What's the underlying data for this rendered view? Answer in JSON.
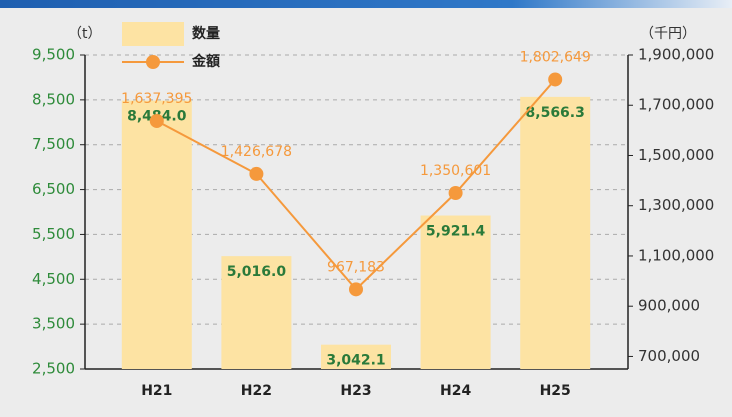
{
  "chart_data": {
    "type": "bar_line",
    "y_unit": "（t）",
    "y2_unit": "（千円）",
    "categories": [
      "H21",
      "H22",
      "H23",
      "H24",
      "H25"
    ],
    "series": [
      {
        "name": "数量",
        "type": "bar",
        "color": "#fde3a3",
        "label_color": "#2a7a3a",
        "values": [
          8484.0,
          5016.0,
          3042.1,
          5921.4,
          8566.3
        ],
        "value_labels": [
          "8,484.0",
          "5,016.0",
          "3,042.1",
          "5,921.4",
          "8,566.3"
        ]
      },
      {
        "name": "金額",
        "type": "line",
        "axis": "y2",
        "color": "#f5993c",
        "values": [
          1637395,
          1426678,
          967183,
          1350601,
          1802649
        ],
        "value_labels": [
          "1,637,395",
          "1,426,678",
          "967,183",
          "1,350,601",
          "1,802,649"
        ]
      }
    ],
    "ylim": [
      2500,
      9500
    ],
    "yticks": [
      {
        "value": 2500,
        "label": "2,500"
      },
      {
        "value": 3500,
        "label": "3,500"
      },
      {
        "value": 4500,
        "label": "4,500"
      },
      {
        "value": 5500,
        "label": "5,500"
      },
      {
        "value": 6500,
        "label": "6,500"
      },
      {
        "value": 7500,
        "label": "7,500"
      },
      {
        "value": 8500,
        "label": "8,500"
      },
      {
        "value": 9500,
        "label": "9,500"
      }
    ],
    "y2lim": [
      650000,
      1900000
    ],
    "y2ticks": [
      {
        "value": 700000,
        "label": "700,000"
      },
      {
        "value": 900000,
        "label": "900,000"
      },
      {
        "value": 1100000,
        "label": "1,100,000"
      },
      {
        "value": 1300000,
        "label": "1,300,000"
      },
      {
        "value": 1500000,
        "label": "1,500,000"
      },
      {
        "value": 1700000,
        "label": "1,700,000"
      },
      {
        "value": 1900000,
        "label": "1,900,000"
      }
    ],
    "grid": true
  }
}
